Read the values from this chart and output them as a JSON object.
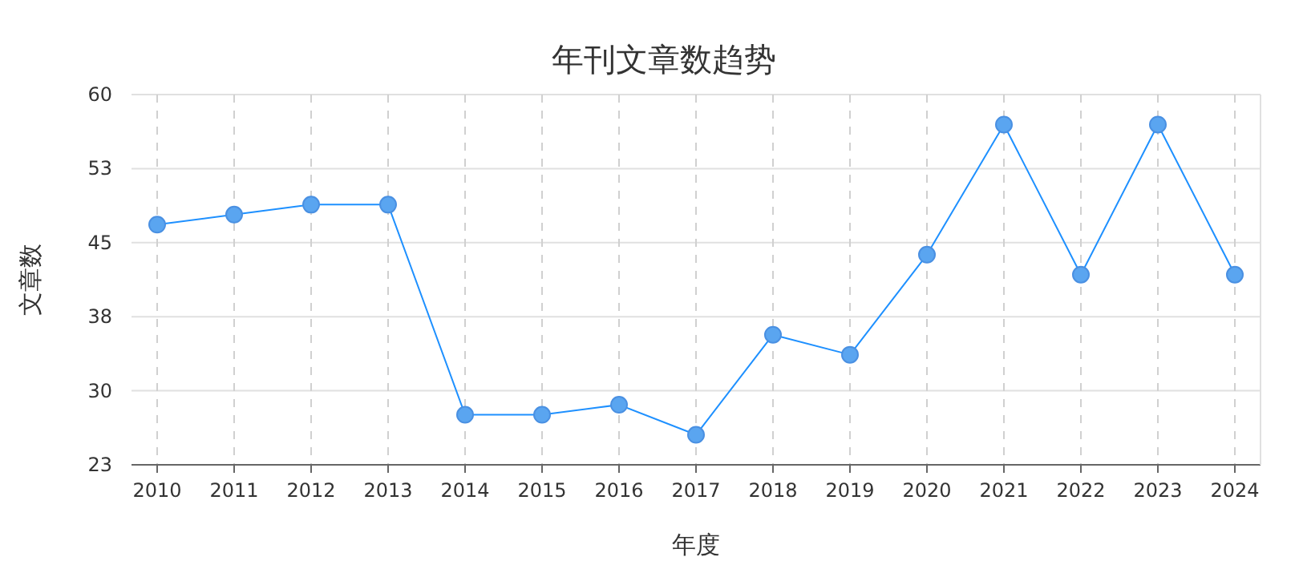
{
  "chart_data": {
    "type": "line",
    "title": "年刊文章数趋势",
    "xlabel": "年度",
    "ylabel": "文章数",
    "categories": [
      "2010",
      "2011",
      "2012",
      "2013",
      "2014",
      "2015",
      "2016",
      "2017",
      "2018",
      "2019",
      "2020",
      "2021",
      "2022",
      "2023",
      "2024"
    ],
    "series": [
      {
        "color": "#1e90ff",
        "values": [
          47,
          48,
          49,
          49,
          28,
          28,
          29,
          26,
          36,
          34,
          44,
          57,
          42,
          57,
          42
        ]
      }
    ],
    "ylim": [
      23,
      60
    ],
    "yticks": [
      23,
      {
        "value": 30.4,
        "label": "30"
      },
      {
        "value": 37.8,
        "label": "38"
      },
      {
        "value": 45.2,
        "label": "45"
      },
      {
        "value": 52.6,
        "label": "53"
      },
      60
    ],
    "grid": true,
    "marker": "circle",
    "line_style": "solid"
  }
}
